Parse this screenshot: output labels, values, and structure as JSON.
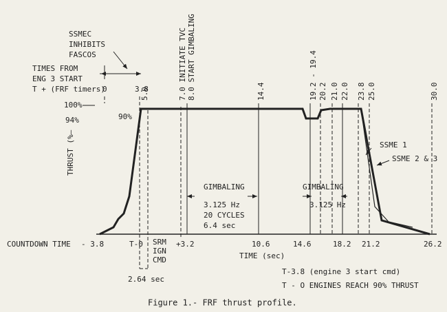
{
  "notes": {
    "ssmec": [
      "SSMEC",
      "INHIBITS",
      "FASCOS"
    ],
    "times_from": [
      "TIMES FROM",
      "ENG 3 START",
      "T + (FRF timers)"
    ]
  },
  "top_times": [
    {
      "label": "0"
    },
    {
      "label": "3.8"
    },
    {
      "label": "5.0"
    },
    {
      "label": "7.0 INITIATE TVC"
    },
    {
      "label": "8.0 START GIMBALING"
    },
    {
      "label": "14.4"
    },
    {
      "label": "19.2 - 19.4"
    },
    {
      "label": "20.2"
    },
    {
      "label": "21.0"
    },
    {
      "label": "22.0"
    },
    {
      "label": "23.8"
    },
    {
      "label": "25.0"
    },
    {
      "label": "30.0"
    }
  ],
  "thrust": {
    "axis": "THRUST (%—",
    "levels": [
      "100%",
      "94%",
      "90%"
    ]
  },
  "countdown": {
    "label": "COUNTDOWN TIME",
    "times": [
      "- 3.8",
      "T-0",
      "+3.2",
      "10.6",
      "14.6",
      "18.2",
      "21.2",
      "26.2"
    ],
    "srm": [
      "SRM",
      "IGN",
      "CMD"
    ]
  },
  "x_axis": "TIME (sec)",
  "interval": "2.64 sec",
  "gimbal1": {
    "title": "GIMBALING",
    "lines": [
      "3.125 Hz",
      "20 CYCLES",
      "6.4 sec"
    ]
  },
  "gimbal2": {
    "title": "GIMBALING",
    "lines": [
      "3.125 Hz"
    ]
  },
  "curves": [
    "SSME 1",
    "SSME 2 & 3"
  ],
  "legend": [
    "T-3.8 (engine 3 start cmd)",
    "T - O ENGINES REACH 90% THRUST"
  ],
  "caption": "Figure 1.- FRF thrust profile."
}
